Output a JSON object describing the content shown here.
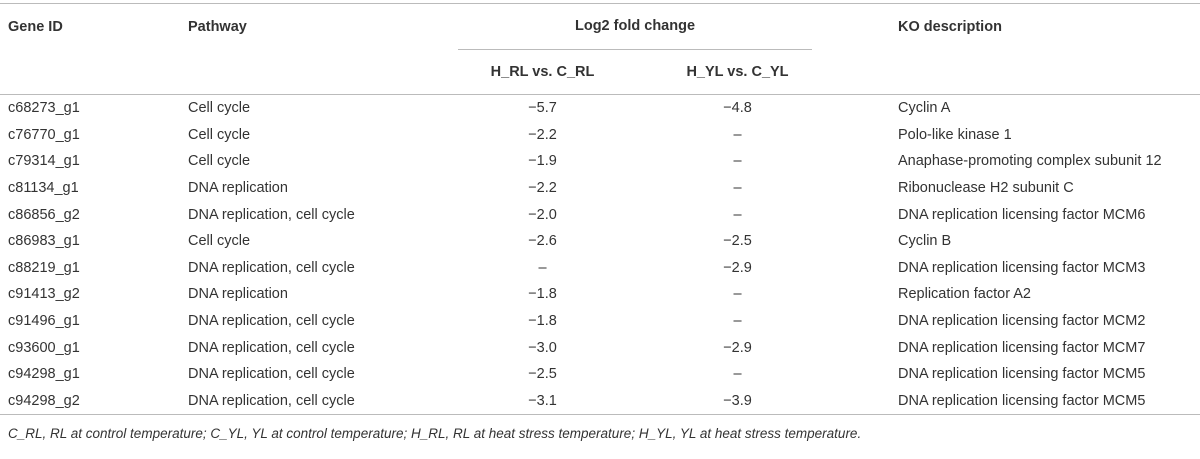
{
  "table": {
    "columns": [
      "Gene ID",
      "Pathway",
      "Log2 fold change",
      "KO description"
    ],
    "subcolumns": [
      "H_RL vs. C_RL",
      "H_YL vs. C_YL"
    ],
    "rows": [
      [
        "c68273_g1",
        "Cell cycle",
        "−5.7",
        "−4.8",
        "Cyclin A"
      ],
      [
        "c76770_g1",
        "Cell cycle",
        "−2.2",
        "–",
        "Polo-like kinase 1"
      ],
      [
        "c79314_g1",
        "Cell cycle",
        "−1.9",
        "–",
        "Anaphase-promoting complex subunit 12"
      ],
      [
        "c81134_g1",
        "DNA replication",
        "−2.2",
        "–",
        "Ribonuclease H2 subunit C"
      ],
      [
        "c86856_g2",
        "DNA replication, cell cycle",
        "−2.0",
        "–",
        "DNA replication licensing factor MCM6"
      ],
      [
        "c86983_g1",
        "Cell cycle",
        "−2.6",
        "−2.5",
        "Cyclin B"
      ],
      [
        "c88219_g1",
        "DNA replication, cell cycle",
        "–",
        "−2.9",
        "DNA replication licensing factor MCM3"
      ],
      [
        "c91413_g2",
        "DNA replication",
        "−1.8",
        "–",
        "Replication factor A2"
      ],
      [
        "c91496_g1",
        "DNA replication, cell cycle",
        "−1.8",
        "–",
        "DNA replication licensing factor MCM2"
      ],
      [
        "c93600_g1",
        "DNA replication, cell cycle",
        "−3.0",
        "−2.9",
        "DNA replication licensing factor MCM7"
      ],
      [
        "c94298_g1",
        "DNA replication, cell cycle",
        "−2.5",
        "–",
        "DNA replication licensing factor MCM5"
      ],
      [
        "c94298_g2",
        "DNA replication, cell cycle",
        "−3.1",
        "−3.9",
        "DNA replication licensing factor MCM5"
      ]
    ]
  },
  "footnote": "C_RL, RL at control temperature; C_YL, YL at control temperature; H_RL, RL at heat stress temperature; H_YL, YL at heat stress temperature."
}
